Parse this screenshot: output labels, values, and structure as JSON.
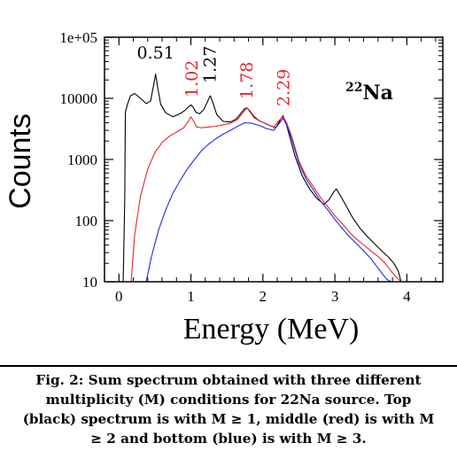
{
  "chart_data": {
    "type": "line",
    "title": "",
    "xlabel": "Energy (MeV)",
    "ylabel": "Counts",
    "xlim": [
      -0.2,
      4.5
    ],
    "ylim": [
      10,
      100000
    ],
    "yscale": "log",
    "x_ticks": [
      0,
      1,
      2,
      3,
      4
    ],
    "x_tick_labels": [
      "0",
      "1",
      "2",
      "3",
      "4"
    ],
    "y_ticks": [
      10,
      100,
      1000,
      10000,
      100000
    ],
    "y_tick_labels": [
      "10",
      "100",
      "1000",
      "10000",
      "1e+05"
    ],
    "grid": false,
    "legend": "none",
    "source_label": {
      "mass": "22",
      "element": "Na"
    },
    "peak_labels": [
      {
        "text": "0.51",
        "x": 0.51,
        "color": "#000000"
      },
      {
        "text": "1.02",
        "x": 1.02,
        "color": "#e8252d"
      },
      {
        "text": "1.27",
        "x": 1.27,
        "color": "#000000"
      },
      {
        "text": "1.78",
        "x": 1.78,
        "color": "#e8252d"
      },
      {
        "text": "2.29",
        "x": 2.29,
        "color": "#e8252d"
      }
    ],
    "series": [
      {
        "color": "#000000",
        "x": [
          0.06,
          0.08,
          0.09,
          0.12,
          0.16,
          0.22,
          0.3,
          0.38,
          0.44,
          0.48,
          0.51,
          0.54,
          0.58,
          0.65,
          0.75,
          0.85,
          0.92,
          0.97,
          1.0,
          1.03,
          1.07,
          1.12,
          1.18,
          1.23,
          1.27,
          1.31,
          1.36,
          1.45,
          1.55,
          1.63,
          1.7,
          1.75,
          1.78,
          1.82,
          1.88,
          1.95,
          2.05,
          2.12,
          2.18,
          2.24,
          2.28,
          2.32,
          2.38,
          2.45,
          2.55,
          2.65,
          2.75,
          2.85,
          2.92,
          2.98,
          3.02,
          3.05,
          3.1,
          3.15,
          3.25,
          3.35,
          3.45,
          3.55,
          3.65,
          3.75,
          3.82,
          3.88,
          3.92
        ],
        "y": [
          10,
          200,
          6000,
          8000,
          11000,
          12000,
          10000,
          8200,
          9000,
          16000,
          25000,
          15000,
          8000,
          5800,
          5000,
          5600,
          6400,
          7300,
          7800,
          7200,
          5900,
          5600,
          6600,
          8800,
          11000,
          8200,
          5400,
          4200,
          4100,
          4600,
          5800,
          6800,
          7000,
          6200,
          5000,
          4300,
          3800,
          3500,
          3300,
          4400,
          5200,
          4000,
          2200,
          1100,
          530,
          330,
          230,
          185,
          220,
          290,
          330,
          290,
          230,
          180,
          110,
          75,
          55,
          42,
          32,
          25,
          20,
          15,
          10
        ]
      },
      {
        "color": "#e8252d",
        "x": [
          0.17,
          0.22,
          0.3,
          0.4,
          0.5,
          0.6,
          0.7,
          0.8,
          0.9,
          0.97,
          1.0,
          1.03,
          1.08,
          1.15,
          1.25,
          1.35,
          1.45,
          1.55,
          1.65,
          1.72,
          1.78,
          1.82,
          1.88,
          1.95,
          2.05,
          2.15,
          2.22,
          2.28,
          2.33,
          2.4,
          2.5,
          2.6,
          2.7,
          2.8,
          2.9,
          3.0,
          3.1,
          3.2,
          3.3,
          3.4,
          3.5,
          3.6,
          3.7,
          3.78,
          3.85,
          3.92
        ],
        "y": [
          10,
          60,
          250,
          700,
          1300,
          1900,
          2400,
          2800,
          3300,
          4300,
          5000,
          4400,
          3400,
          3300,
          3400,
          3500,
          3700,
          3900,
          4500,
          5800,
          7000,
          6000,
          4800,
          4300,
          3800,
          3400,
          4300,
          5000,
          4000,
          2400,
          950,
          530,
          360,
          240,
          170,
          120,
          90,
          65,
          50,
          40,
          32,
          26,
          20,
          15,
          12,
          10
        ]
      },
      {
        "color": "#1f2be8",
        "x": [
          0.38,
          0.45,
          0.55,
          0.65,
          0.75,
          0.85,
          0.95,
          1.05,
          1.15,
          1.25,
          1.35,
          1.45,
          1.55,
          1.65,
          1.75,
          1.85,
          1.95,
          2.05,
          2.15,
          2.22,
          2.28,
          2.33,
          2.4,
          2.5,
          2.6,
          2.7,
          2.8,
          2.9,
          3.0,
          3.1,
          3.2,
          3.3,
          3.4,
          3.5,
          3.58,
          3.65,
          3.72,
          3.78
        ],
        "y": [
          10,
          25,
          70,
          150,
          280,
          450,
          700,
          1000,
          1400,
          1800,
          2200,
          2600,
          3000,
          3500,
          4000,
          3900,
          3600,
          3200,
          3000,
          3800,
          4700,
          3700,
          2200,
          880,
          480,
          320,
          210,
          150,
          105,
          75,
          55,
          42,
          32,
          24,
          18,
          14,
          11,
          10
        ]
      }
    ]
  },
  "caption": "Fig. 2: Sum spectrum obtained with three different multiplicity (M) conditions for 22Na source. Top (black) spectrum is with M ≥ 1, middle (red) is with  M ≥ 2 and bottom (blue) is with  M ≥ 3."
}
